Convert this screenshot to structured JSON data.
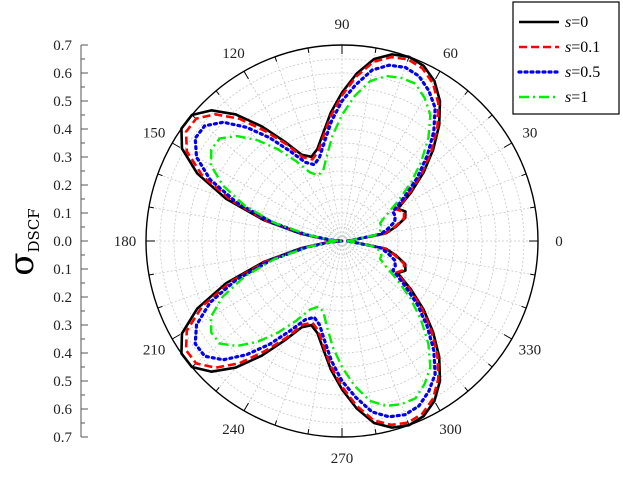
{
  "chart_data": {
    "type": "polar-line",
    "ylabel": {
      "symbol": "σ",
      "subscript": "DSCF"
    },
    "radial_range": [
      0,
      0.7
    ],
    "radial_ticks": [
      0.7,
      0.6,
      0.5,
      0.4,
      0.3,
      0.2,
      0.1,
      0.0,
      0.1,
      0.2,
      0.3,
      0.4,
      0.5,
      0.6,
      0.7
    ],
    "angle_ticks_deg": [
      0,
      30,
      60,
      90,
      120,
      150,
      180,
      210,
      240,
      270,
      300,
      330
    ],
    "angle_labels": [
      "0",
      "30",
      "60",
      "90",
      "120",
      "150",
      "180",
      "210",
      "240",
      "270",
      "300",
      "330"
    ],
    "grid": true,
    "legend_position": "top-right",
    "theta_deg": [
      0,
      10,
      15,
      20,
      25,
      30,
      35,
      40,
      45,
      50,
      55,
      60,
      65,
      70,
      75,
      80,
      85,
      90,
      95,
      100,
      105,
      110,
      115,
      120,
      125,
      130,
      135,
      140,
      145,
      150,
      155,
      160,
      165,
      170,
      175,
      180
    ],
    "series": [
      {
        "name": "s=0",
        "color": "#000000",
        "dash": "solid",
        "values": [
          0.02,
          0.16,
          0.2,
          0.24,
          0.25,
          0.23,
          0.3,
          0.38,
          0.46,
          0.54,
          0.61,
          0.66,
          0.69,
          0.7,
          0.69,
          0.66,
          0.6,
          0.53,
          0.46,
          0.39,
          0.34,
          0.32,
          0.34,
          0.41,
          0.5,
          0.59,
          0.66,
          0.7,
          0.7,
          0.66,
          0.57,
          0.44,
          0.29,
          0.15,
          0.05,
          0.0
        ]
      },
      {
        "name": "s=0.1",
        "color": "#ff0000",
        "dash": "dash",
        "values": [
          0.02,
          0.155,
          0.195,
          0.235,
          0.245,
          0.225,
          0.29,
          0.37,
          0.45,
          0.53,
          0.6,
          0.65,
          0.68,
          0.69,
          0.68,
          0.65,
          0.59,
          0.52,
          0.45,
          0.38,
          0.33,
          0.31,
          0.33,
          0.4,
          0.48,
          0.57,
          0.64,
          0.68,
          0.68,
          0.64,
          0.55,
          0.42,
          0.28,
          0.14,
          0.05,
          0.0
        ]
      },
      {
        "name": "s=0.5",
        "color": "#0000ee",
        "dash": "dot",
        "values": [
          0.02,
          0.14,
          0.17,
          0.2,
          0.21,
          0.21,
          0.27,
          0.35,
          0.43,
          0.51,
          0.58,
          0.62,
          0.65,
          0.66,
          0.65,
          0.62,
          0.56,
          0.5,
          0.43,
          0.36,
          0.31,
          0.29,
          0.31,
          0.37,
          0.45,
          0.53,
          0.6,
          0.64,
          0.64,
          0.6,
          0.52,
          0.4,
          0.26,
          0.13,
          0.04,
          0.0
        ]
      },
      {
        "name": "s=1",
        "color": "#00ee00",
        "dash": "dashdot",
        "values": [
          0.02,
          0.12,
          0.14,
          0.15,
          0.15,
          0.18,
          0.24,
          0.32,
          0.4,
          0.48,
          0.55,
          0.59,
          0.62,
          0.62,
          0.61,
          0.58,
          0.52,
          0.45,
          0.38,
          0.31,
          0.26,
          0.25,
          0.27,
          0.33,
          0.4,
          0.47,
          0.53,
          0.57,
          0.57,
          0.54,
          0.47,
          0.37,
          0.25,
          0.12,
          0.04,
          0.0
        ]
      }
    ]
  }
}
